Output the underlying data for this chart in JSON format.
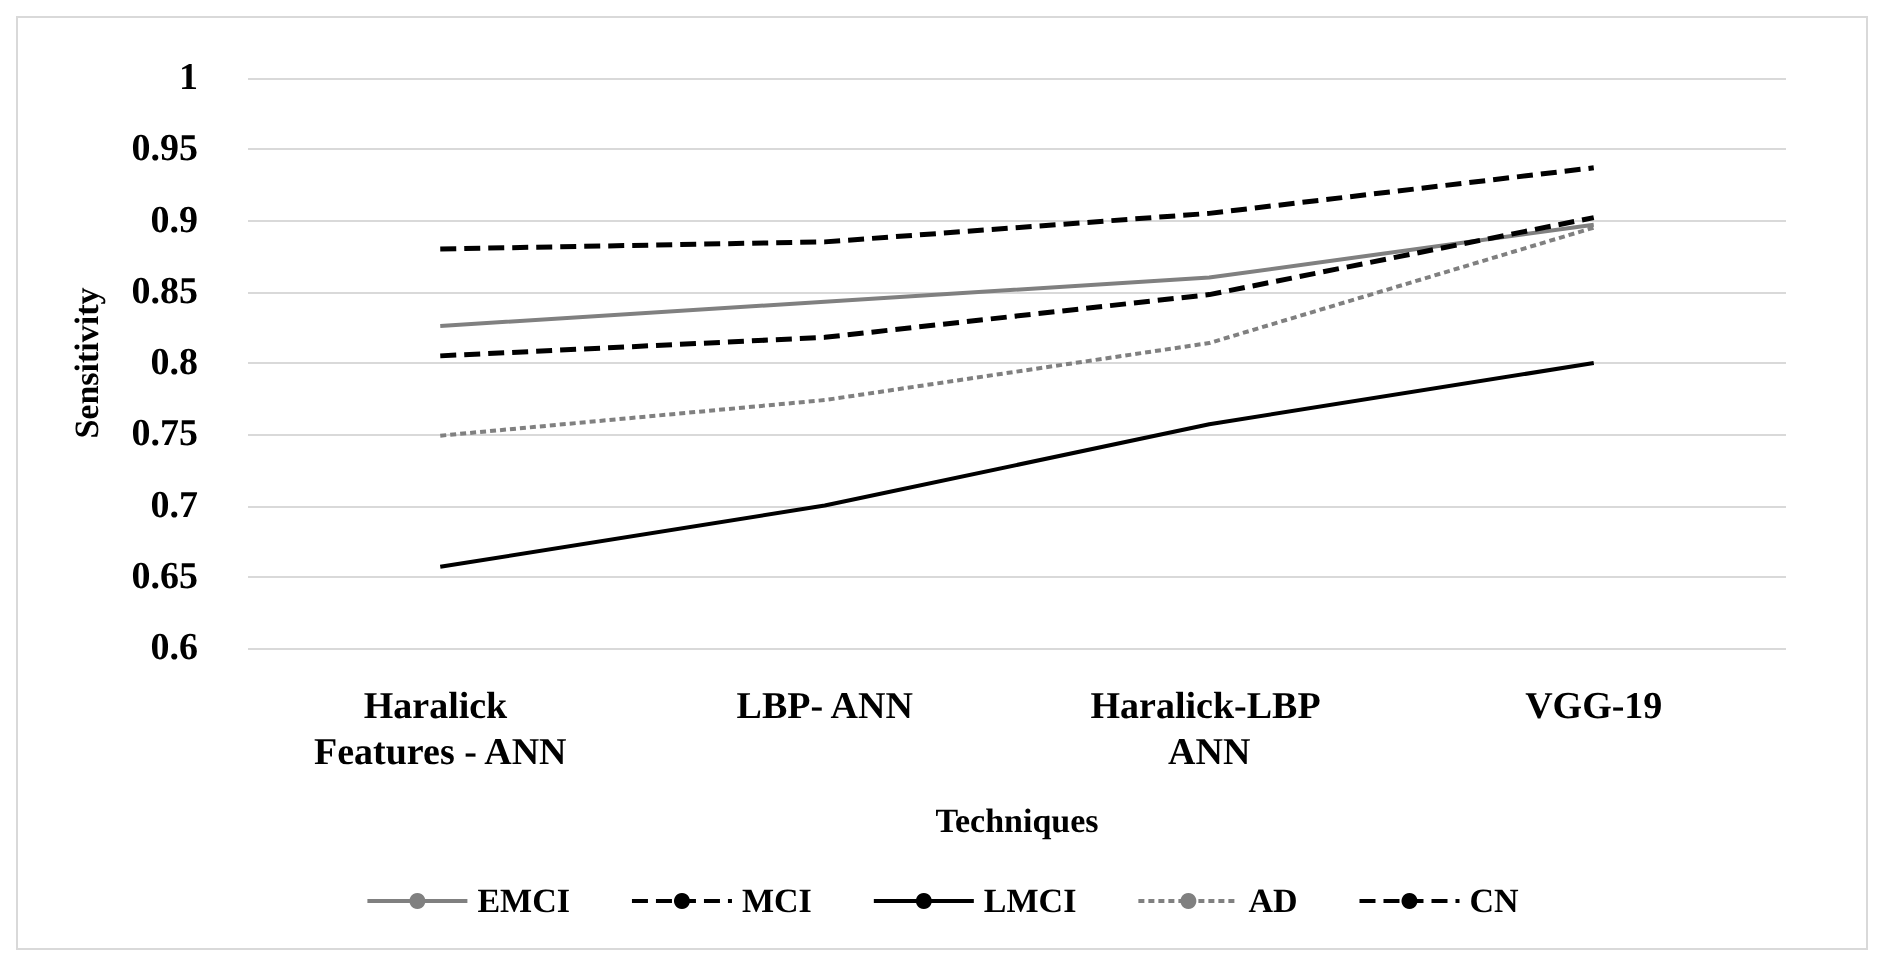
{
  "chart_data": {
    "type": "line",
    "xlabel": "Techniques",
    "ylabel": "Sensitivity",
    "categories": [
      "Haralick Features - ANN",
      "LBP- ANN",
      "Haralick-LBP ANN",
      "VGG-19"
    ],
    "series": [
      {
        "name": "EMCI",
        "color": "#808080",
        "line_style": "solid",
        "values": [
          0.826,
          0.843,
          0.86,
          0.897
        ]
      },
      {
        "name": "MCI",
        "color": "#000000",
        "line_style": "dashed",
        "values": [
          0.805,
          0.818,
          0.848,
          0.902
        ]
      },
      {
        "name": "LMCI",
        "color": "#000000",
        "line_style": "solid",
        "values": [
          0.657,
          0.7,
          0.757,
          0.8
        ]
      },
      {
        "name": "AD",
        "color": "#808080",
        "line_style": "dotted",
        "values": [
          0.749,
          0.774,
          0.814,
          0.895
        ]
      },
      {
        "name": "CN",
        "color": "#000000",
        "line_style": "dashed",
        "values": [
          0.88,
          0.885,
          0.905,
          0.937
        ]
      }
    ],
    "ylim": [
      0.6,
      1
    ],
    "yticks": [
      0.6,
      0.65,
      0.7,
      0.75,
      0.8,
      0.85,
      0.9,
      0.95,
      1
    ],
    "grid": "y",
    "legend": "bottom",
    "marker": "none"
  }
}
